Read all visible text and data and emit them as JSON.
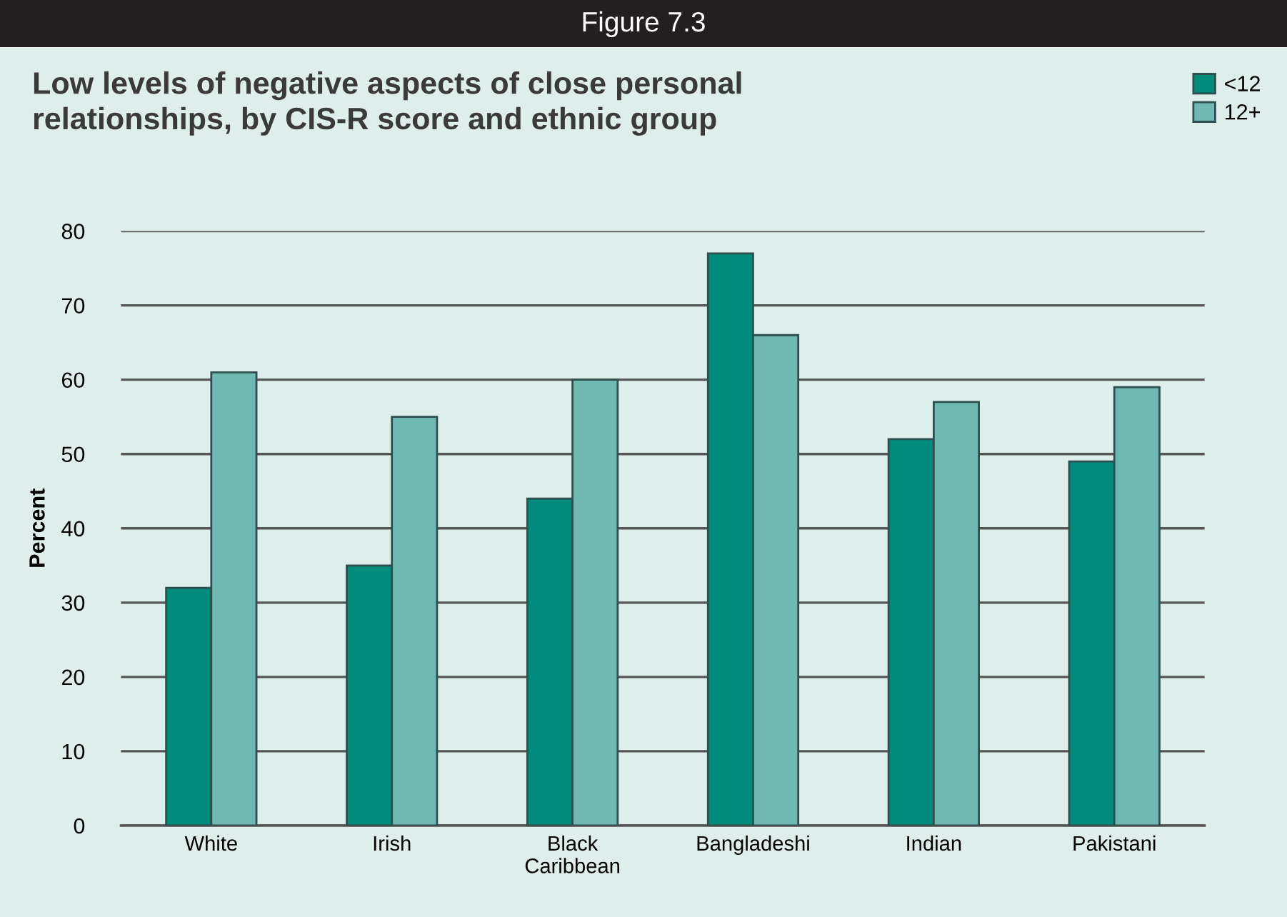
{
  "chart_data": {
    "type": "bar",
    "title": "Low levels of negative aspects of close personal\nrelationships, by CIS-R score and ethnic group",
    "annotations": [
      "Figure 7.3"
    ],
    "ylabel": "Percent",
    "categories": [
      "White",
      "Irish",
      "Black\nCaribbean",
      "Bangladeshi",
      "Indian",
      "Pakistani"
    ],
    "series": [
      {
        "name": "<12",
        "color": "#008b7c",
        "values": [
          32,
          35,
          44,
          77,
          52,
          49
        ]
      },
      {
        "name": "12+",
        "color": "#70b9b3",
        "values": [
          61,
          55,
          60,
          66,
          57,
          59
        ]
      }
    ],
    "ylim": [
      0,
      80
    ],
    "yticks": [
      0,
      10,
      20,
      30,
      40,
      50,
      60,
      70,
      80
    ],
    "grid": "y",
    "legend": "top right"
  }
}
